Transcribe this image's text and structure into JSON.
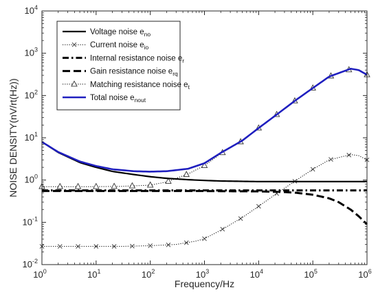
{
  "chart_data": {
    "type": "line",
    "xlabel": "Frequency/Hz",
    "ylabel": "NOISE DENSITY(nV/rt(Hz))",
    "x_scale": "log",
    "y_scale": "log",
    "xlim": [
      1,
      1000000
    ],
    "ylim": [
      0.01,
      10000
    ],
    "x_ticks": [
      {
        "base": "10",
        "exp": "0"
      },
      {
        "base": "10",
        "exp": "1"
      },
      {
        "base": "10",
        "exp": "2"
      },
      {
        "base": "10",
        "exp": "3"
      },
      {
        "base": "10",
        "exp": "4"
      },
      {
        "base": "10",
        "exp": "5"
      },
      {
        "base": "10",
        "exp": "6"
      }
    ],
    "y_ticks": [
      {
        "base": "10",
        "exp": "-2"
      },
      {
        "base": "10",
        "exp": "-1"
      },
      {
        "base": "10",
        "exp": "0"
      },
      {
        "base": "10",
        "exp": "1"
      },
      {
        "base": "10",
        "exp": "2"
      },
      {
        "base": "10",
        "exp": "3"
      },
      {
        "base": "10",
        "exp": "4"
      }
    ],
    "grid": false,
    "legend_position": "top-left",
    "series": [
      {
        "name": "Voltage noise e",
        "name_sub": "no",
        "style": "solid",
        "color": "#000000",
        "marker": "none",
        "x": [
          1,
          2,
          5,
          10,
          20,
          50,
          100,
          200,
          500,
          1000,
          2000,
          10000,
          100000,
          1000000
        ],
        "y": [
          8,
          4.5,
          2.6,
          2.0,
          1.6,
          1.35,
          1.2,
          1.1,
          1.02,
          0.98,
          0.95,
          0.92,
          0.92,
          0.92
        ]
      },
      {
        "name": "Current noise e",
        "name_sub": "io",
        "style": "dotted",
        "color": "#000000",
        "marker": "x",
        "x": [
          1,
          2,
          5,
          10,
          30,
          100,
          300,
          700,
          1000,
          2000,
          5000,
          10000,
          20000,
          50000,
          100000,
          200000,
          500000,
          700000,
          1000000
        ],
        "y": [
          0.027,
          0.027,
          0.027,
          0.027,
          0.027,
          0.028,
          0.03,
          0.036,
          0.041,
          0.065,
          0.13,
          0.24,
          0.45,
          1.0,
          1.8,
          3.0,
          4.0,
          3.8,
          3.0
        ]
      },
      {
        "name": "Internal resistance noise e",
        "name_sub": "r",
        "style": "dashdot",
        "color": "#000000",
        "marker": "none",
        "x": [
          1,
          10,
          100,
          1000,
          10000,
          100000,
          1000000
        ],
        "y": [
          0.57,
          0.57,
          0.57,
          0.57,
          0.57,
          0.57,
          0.57
        ]
      },
      {
        "name": "Gain resistance noise e",
        "name_sub": "rq",
        "style": "dashed",
        "color": "#000000",
        "marker": "none",
        "x": [
          1,
          10,
          100,
          1000,
          10000,
          30000,
          50000,
          100000,
          200000,
          300000,
          500000,
          700000,
          1000000
        ],
        "y": [
          0.55,
          0.55,
          0.55,
          0.55,
          0.54,
          0.52,
          0.5,
          0.45,
          0.37,
          0.3,
          0.2,
          0.14,
          0.09
        ]
      },
      {
        "name": "Matching resistance noise e",
        "name_sub": "t",
        "style": "dotted",
        "color": "#000000",
        "marker": "triangle",
        "x": [
          1,
          2,
          5,
          10,
          30,
          100,
          200,
          500,
          1000,
          2000,
          5000,
          10000,
          20000,
          50000,
          100000,
          200000,
          500000,
          700000,
          1000000
        ],
        "y": [
          0.7,
          0.7,
          0.7,
          0.7,
          0.71,
          0.76,
          0.9,
          1.4,
          2.2,
          4.2,
          8.5,
          17,
          33,
          80,
          150,
          280,
          420,
          400,
          310
        ]
      },
      {
        "name": "Total noise e",
        "name_sub": "nout",
        "style": "solid",
        "color": "#1f1fbf",
        "marker": "none",
        "x": [
          1,
          2,
          5,
          10,
          20,
          50,
          100,
          200,
          500,
          1000,
          2000,
          5000,
          10000,
          20000,
          50000,
          100000,
          200000,
          500000,
          700000,
          1000000
        ],
        "y": [
          8,
          4.6,
          2.75,
          2.15,
          1.8,
          1.62,
          1.58,
          1.62,
          1.85,
          2.5,
          4.4,
          8.6,
          17,
          33,
          80,
          150,
          280,
          430,
          400,
          310
        ]
      }
    ]
  }
}
